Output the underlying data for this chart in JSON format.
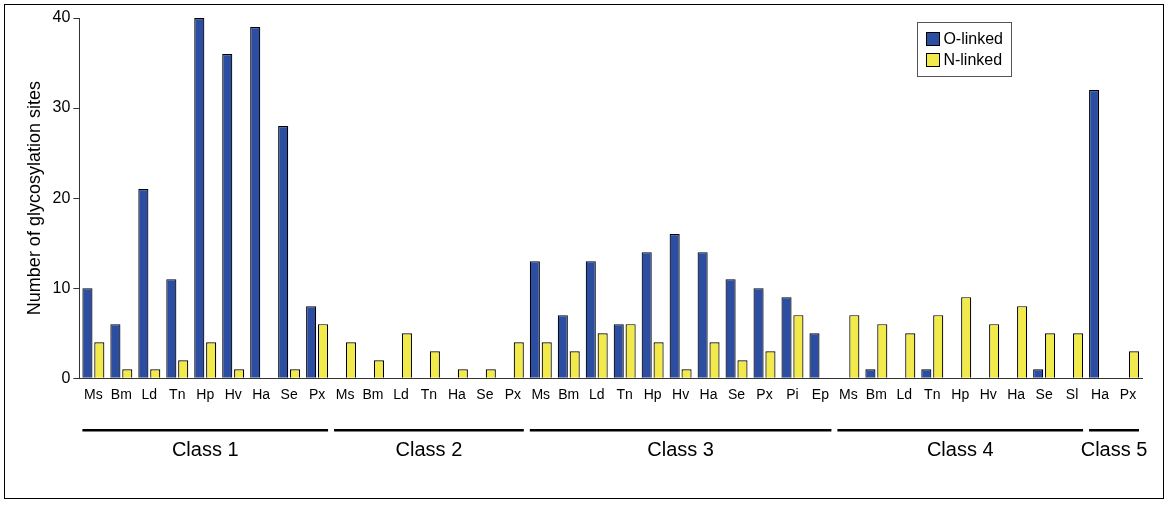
{
  "chart_data": {
    "type": "bar",
    "ylabel": "Number of glycosylation sites",
    "categories": [
      "Ms",
      "Bm",
      "Ld",
      "Tn",
      "Hp",
      "Hv",
      "Ha",
      "Se",
      "Px",
      "Ms",
      "Bm",
      "Ld",
      "Tn",
      "Ha",
      "Se",
      "Px",
      "Ms",
      "Bm",
      "Ld",
      "Tn",
      "Hp",
      "Hv",
      "Ha",
      "Se",
      "Px",
      "Pi",
      "Ep",
      "Ms",
      "Bm",
      "Ld",
      "Tn",
      "Hp",
      "Hv",
      "Ha",
      "Se",
      "Sl",
      "Ha",
      "Px"
    ],
    "series": [
      {
        "name": "O-linked",
        "color": "#2b4ea2",
        "values": [
          10,
          6,
          21,
          11,
          40,
          36,
          39,
          28,
          8,
          0,
          0,
          0,
          0,
          0,
          0,
          0,
          13,
          7,
          13,
          6,
          14,
          16,
          14,
          11,
          10,
          9,
          5,
          0,
          1,
          0,
          1,
          0,
          0,
          0,
          1,
          0,
          32,
          0
        ]
      },
      {
        "name": "N-linked",
        "color": "#f2ea4a",
        "values": [
          4,
          1,
          1,
          2,
          4,
          1,
          0,
          1,
          6,
          4,
          2,
          5,
          3,
          1,
          1,
          4,
          4,
          3,
          5,
          6,
          4,
          1,
          4,
          2,
          3,
          7,
          0,
          7,
          6,
          5,
          7,
          9,
          6,
          8,
          5,
          5,
          0,
          3
        ]
      }
    ],
    "ylim": [
      0,
      40
    ],
    "yticks": [
      0,
      10,
      20,
      30,
      40
    ],
    "grid": false,
    "legend": "top right",
    "annotations": [
      "Class 1",
      "Class 2",
      "Class 3",
      "Class 4",
      "Class 5"
    ]
  }
}
